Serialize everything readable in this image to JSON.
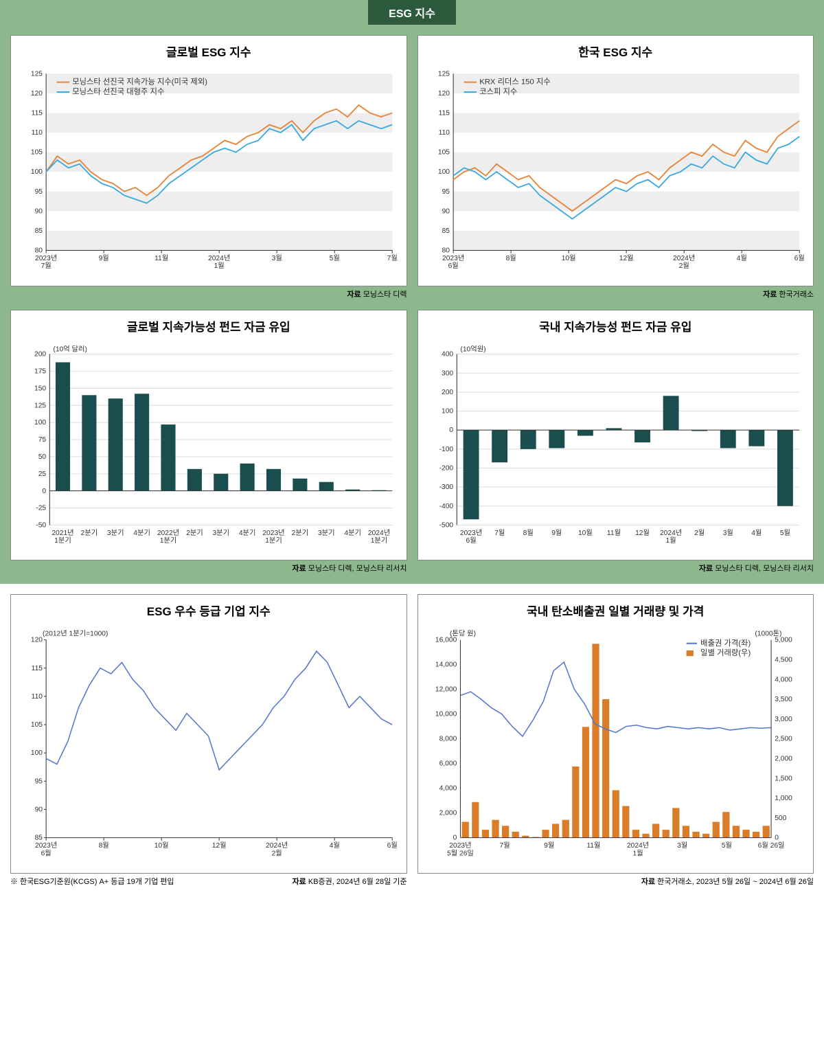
{
  "header": "ESG 지수",
  "charts": {
    "c1": {
      "title": "글로벌 ESG 지수",
      "source_label": "자료",
      "source": "모닝스타 디렉",
      "legend": [
        "모닝스타 선진국 지속가능 지수(미국 제외)",
        "모닝스타 선진국 대형주 지수"
      ],
      "colors": [
        "#e8833a",
        "#3ba9e0"
      ],
      "ylim": [
        80,
        125
      ],
      "ytick_step": 5,
      "xlabels": [
        "2023년\n7월",
        "9월",
        "11월",
        "2024년\n1월",
        "3월",
        "5월",
        "7월"
      ],
      "series": [
        [
          100,
          104,
          102,
          103,
          100,
          98,
          97,
          95,
          96,
          94,
          96,
          99,
          101,
          103,
          104,
          106,
          108,
          107,
          109,
          110,
          112,
          111,
          113,
          110,
          113,
          115,
          116,
          114,
          117,
          115,
          114,
          115
        ],
        [
          100,
          103,
          101,
          102,
          99,
          97,
          96,
          94,
          93,
          92,
          94,
          97,
          99,
          101,
          103,
          105,
          106,
          105,
          107,
          108,
          111,
          110,
          112,
          108,
          111,
          112,
          113,
          111,
          113,
          112,
          111,
          112
        ]
      ],
      "bg": "#ffffff"
    },
    "c2": {
      "title": "한국 ESG 지수",
      "source_label": "자료",
      "source": "한국거래소",
      "legend": [
        "KRX 리더스 150 지수",
        "코스피 지수"
      ],
      "colors": [
        "#e8833a",
        "#3ba9e0"
      ],
      "ylim": [
        80,
        125
      ],
      "ytick_step": 5,
      "xlabels": [
        "2023년\n6월",
        "8월",
        "10월",
        "12월",
        "2024년\n2월",
        "4월",
        "6월"
      ],
      "series": [
        [
          98,
          100,
          101,
          99,
          102,
          100,
          98,
          99,
          96,
          94,
          92,
          90,
          92,
          94,
          96,
          98,
          97,
          99,
          100,
          98,
          101,
          103,
          105,
          104,
          107,
          105,
          104,
          108,
          106,
          105,
          109,
          111,
          113
        ],
        [
          99,
          101,
          100,
          98,
          100,
          98,
          96,
          97,
          94,
          92,
          90,
          88,
          90,
          92,
          94,
          96,
          95,
          97,
          98,
          96,
          99,
          100,
          102,
          101,
          104,
          102,
          101,
          105,
          103,
          102,
          106,
          107,
          109
        ]
      ],
      "bg": "#ffffff"
    },
    "c3": {
      "title": "글로벌 지속가능성 펀드 자금 유입",
      "source_label": "자료",
      "source": "모닝스타 디렉, 모닝스타 리서치",
      "unit": "(10억 달러)",
      "ylim": [
        -50,
        200
      ],
      "ytick_step": 25,
      "xlabels": [
        "2021년\n1분기",
        "2분기",
        "3분기",
        "4분기",
        "2022년\n1분기",
        "2분기",
        "3분기",
        "4분기",
        "2023년\n1분기",
        "2분기",
        "3분기",
        "4분기",
        "2024년\n1분기"
      ],
      "values": [
        188,
        140,
        135,
        142,
        97,
        32,
        25,
        40,
        32,
        18,
        13,
        2,
        1
      ],
      "bar_color": "#1a4d4d",
      "bg": "#ffffff"
    },
    "c4": {
      "title": "국내 지속가능성 펀드 자금 유입",
      "source_label": "자료",
      "source": "모닝스타 디렉, 모닝스타 리서치",
      "unit": "(10억원)",
      "ylim": [
        -500,
        400
      ],
      "ytick_step": 100,
      "xlabels": [
        "2023년\n6월",
        "7월",
        "8월",
        "9월",
        "10월",
        "11월",
        "12월",
        "2024년\n1월",
        "2월",
        "3월",
        "4월",
        "5월"
      ],
      "values": [
        -470,
        -170,
        -100,
        -95,
        -30,
        10,
        -65,
        180,
        -5,
        -95,
        -85,
        -400
      ],
      "bar_color": "#1a4d4d",
      "bg": "#ffffff"
    },
    "c5": {
      "title": "ESG 우수 등급 기업 지수",
      "source_label": "자료",
      "source": "KB증권, 2024년 6월 28일 기준",
      "footnote": "※ 한국ESG기준원(KCGS) A+ 등급 19개 기업 편입",
      "unit": "(2012년 1분기=1000)",
      "ylim": [
        85,
        120
      ],
      "ytick_step": 5,
      "xlabels": [
        "2023년\n6월",
        "8월",
        "10월",
        "12월",
        "2024년\n2월",
        "4월",
        "6월"
      ],
      "color": "#5577cc",
      "series": [
        99,
        98,
        102,
        108,
        112,
        115,
        114,
        116,
        113,
        111,
        108,
        106,
        104,
        107,
        105,
        103,
        97,
        99,
        101,
        103,
        105,
        108,
        110,
        113,
        115,
        118,
        116,
        112,
        108,
        110,
        108,
        106,
        105
      ],
      "bg": "#ffffff"
    },
    "c6": {
      "title": "국내 탄소배출권 일별 거래량 및 가격",
      "source_label": "자료",
      "source": "한국거래소, 2023년 5월 26일 ~ 2024년 6월 26일",
      "legend": [
        "배출권 가격(좌)",
        "일별 거래량(우)"
      ],
      "colors": [
        "#5577cc",
        "#d97d2a"
      ],
      "left_unit": "(톤당 원)",
      "right_unit": "(1000톤)",
      "ylim_left": [
        0,
        16000
      ],
      "ytick_left": 2000,
      "ylim_right": [
        0,
        5000
      ],
      "ytick_right": 500,
      "xlabels": [
        "2023년\n5월 26일",
        "7월",
        "9월",
        "11월",
        "2024년\n1월",
        "3월",
        "5월",
        "6월 26일"
      ],
      "price": [
        11500,
        11800,
        11200,
        10500,
        10000,
        9000,
        8200,
        9500,
        11000,
        13500,
        14200,
        12000,
        10800,
        9200,
        8800,
        8500,
        9000,
        9100,
        8900,
        8800,
        9000,
        8900,
        8800,
        8900,
        8800,
        8900,
        8700,
        8800,
        8900,
        8850,
        8900
      ],
      "volume": [
        400,
        900,
        200,
        450,
        300,
        150,
        50,
        20,
        200,
        350,
        450,
        1800,
        2800,
        4900,
        3500,
        1200,
        800,
        200,
        100,
        350,
        200,
        750,
        300,
        150,
        100,
        400,
        650,
        300,
        200,
        150,
        300
      ],
      "bg": "#ffffff"
    }
  }
}
